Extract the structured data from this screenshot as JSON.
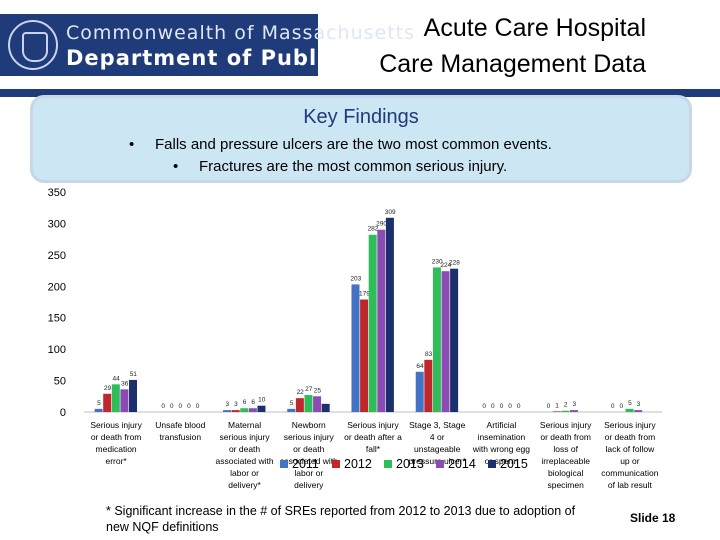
{
  "header": {
    "org_line1": "Commonwealth of Massachusetts",
    "org_line2": "Department of Public Health",
    "title_line1": "Acute Care Hospital",
    "title_line2": "Care Management Data",
    "brand_color": "#1f3b7a"
  },
  "findings": {
    "title": "Key Findings",
    "items": [
      "Falls and pressure ulcers are the two most common events.",
      "Fractures are the most common serious injury."
    ],
    "bullet": "•",
    "background_color": "#cde6f4"
  },
  "chart_data": {
    "type": "bar",
    "ylim": [
      0,
      350
    ],
    "yticks": [
      0,
      50,
      100,
      150,
      200,
      250,
      300,
      350
    ],
    "grid": false,
    "legend_placement": "bottom",
    "categories": [
      [
        "Serious injury",
        "or death from",
        "medication",
        "error*"
      ],
      [
        "Unsafe blood",
        "transfusion"
      ],
      [
        "Maternal",
        "serious injury",
        "or death",
        "associated with",
        "labor or",
        "delivery*"
      ],
      [
        "Newborn",
        "serious injury",
        "or death",
        "associated with",
        "labor or",
        "delivery"
      ],
      [
        "Serious injury",
        "or death after a",
        "fall*"
      ],
      [
        "Stage 3, Stage",
        "4 or",
        "unstageable",
        "pressure ulcer*"
      ],
      [
        "Artificial",
        "insemination",
        "with wrong egg",
        "or sperm"
      ],
      [
        "Serious injury",
        "or death from",
        "loss of",
        "irreplaceable",
        "biological",
        "specimen"
      ],
      [
        "Serious injury",
        "or death from",
        "lack of follow",
        "up or",
        "communication",
        "of lab result"
      ]
    ],
    "series": [
      {
        "name": "2011",
        "color": "#4472c4",
        "values": [
          5,
          0,
          3,
          5,
          203,
          64,
          0,
          0,
          0
        ]
      },
      {
        "name": "2012",
        "color": "#c0272d",
        "values": [
          29,
          0,
          3,
          22,
          179,
          83,
          0,
          1,
          0
        ]
      },
      {
        "name": "2013",
        "color": "#2ebd59",
        "values": [
          44,
          0,
          6,
          27,
          282,
          230,
          0,
          2,
          5
        ]
      },
      {
        "name": "2014",
        "color": "#8b4bb3",
        "values": [
          36,
          0,
          6,
          25,
          290,
          224,
          0,
          3,
          3
        ]
      },
      {
        "name": "2015",
        "color": "#1a2f6b",
        "values": [
          51,
          0,
          10,
          13,
          309,
          228,
          0,
          0,
          0
        ]
      }
    ],
    "labels_shown": [
      [
        5,
        29,
        44,
        36,
        51
      ],
      [
        0,
        0,
        0,
        0,
        0
      ],
      [
        3,
        3,
        6,
        6,
        10
      ],
      [
        5,
        22,
        27,
        25,
        null
      ],
      [
        203,
        179,
        282,
        290,
        309
      ],
      [
        64,
        83,
        230,
        224,
        228
      ],
      [
        0,
        0,
        0,
        0,
        0
      ],
      [
        0,
        1,
        2,
        3,
        null
      ],
      [
        0,
        0,
        5,
        3,
        null
      ]
    ]
  },
  "footnote": "* Significant increase in the # of SREs reported from 2012 to 2013 due to adoption of new NQF definitions",
  "slide_number": "Slide 18"
}
